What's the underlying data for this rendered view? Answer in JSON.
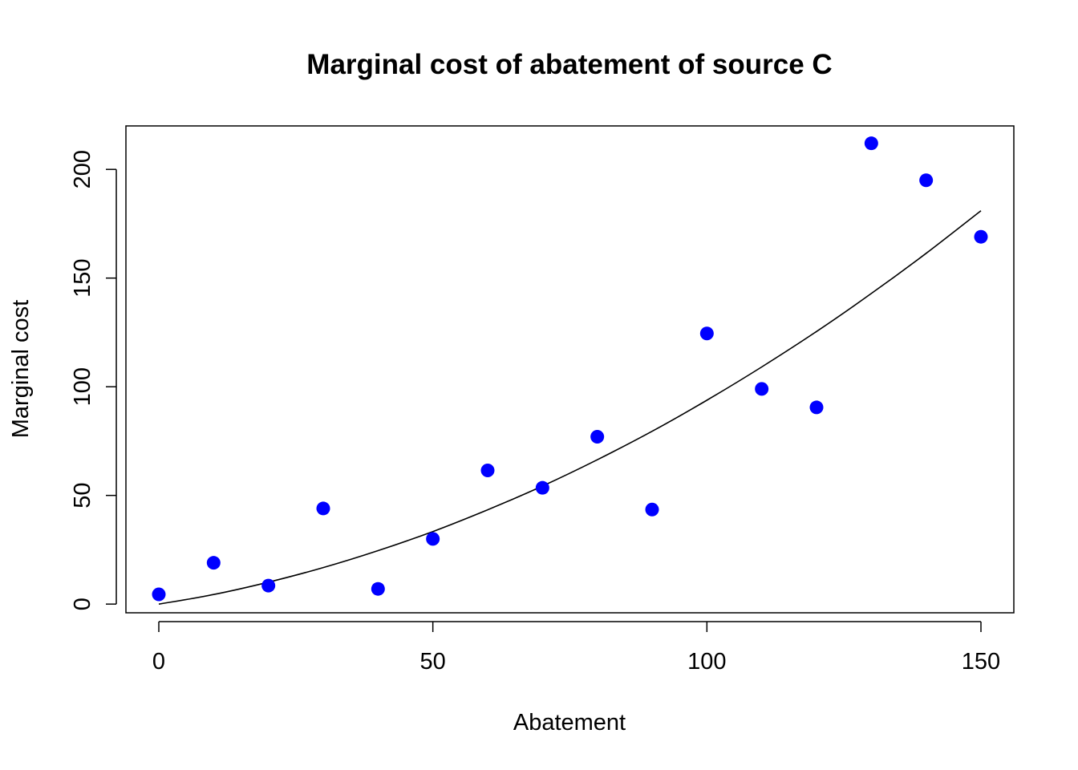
{
  "chart_data": {
    "type": "scatter",
    "title": "Marginal cost of abatement of source C",
    "xlabel": "Abatement",
    "ylabel": "Marginal cost",
    "xlim": [
      -6,
      156
    ],
    "ylim": [
      -4,
      220
    ],
    "xticks": [
      0,
      50,
      100,
      150
    ],
    "yticks": [
      0,
      50,
      100,
      150,
      200
    ],
    "grid": false,
    "legend": "none",
    "series": [
      {
        "name": "Observed marginal cost",
        "kind": "points",
        "color": "#0000ff",
        "x": [
          0,
          10,
          20,
          30,
          40,
          50,
          60,
          70,
          80,
          90,
          100,
          110,
          120,
          130,
          140,
          150
        ],
        "y": [
          4.5,
          19,
          8.5,
          44,
          7,
          30,
          61.5,
          53.5,
          77,
          43.5,
          124.5,
          99,
          90.5,
          212,
          195,
          169
        ]
      },
      {
        "name": "Fitted curve",
        "kind": "line",
        "color": "#000000",
        "x": [
          0,
          10,
          20,
          30,
          40,
          50,
          60,
          70,
          80,
          90,
          100,
          110,
          120,
          130,
          140,
          150
        ],
        "y": [
          0,
          4.4,
          10.1,
          16.8,
          24.6,
          33.4,
          43.4,
          54.3,
          66.4,
          79.5,
          93.8,
          109.1,
          125.4,
          142.9,
          161.4,
          181
        ]
      }
    ]
  }
}
